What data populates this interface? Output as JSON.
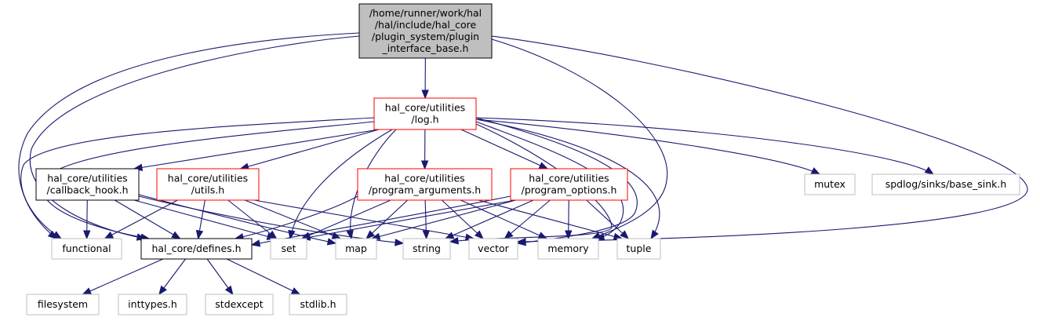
{
  "colors": {
    "root_fill": "#bfbfbf",
    "node_fill": "#ffffff",
    "border_root": "#000000",
    "border_red": "#ff0000",
    "border_black": "#000000",
    "border_gray": "#bfbfbf",
    "edge": "#191970"
  },
  "nodes": {
    "root": {
      "lines": [
        "/home/runner/work/hal",
        "/hal/include/hal_core",
        "/plugin_system/plugin",
        "_interface_base.h"
      ],
      "style": "root"
    },
    "log": {
      "lines": [
        "hal_core/utilities",
        "/log.h"
      ],
      "style": "red"
    },
    "callback": {
      "lines": [
        "hal_core/utilities",
        "/callback_hook.h"
      ],
      "style": "black"
    },
    "utils": {
      "lines": [
        "hal_core/utilities",
        "/utils.h"
      ],
      "style": "red"
    },
    "progargs": {
      "lines": [
        "hal_core/utilities",
        "/program_arguments.h"
      ],
      "style": "red"
    },
    "progopts": {
      "lines": [
        "hal_core/utilities",
        "/program_options.h"
      ],
      "style": "red"
    },
    "mutex": {
      "lines": [
        "mutex"
      ],
      "style": "gray"
    },
    "basesink": {
      "lines": [
        "spdlog/sinks/base_sink.h"
      ],
      "style": "gray"
    },
    "functional": {
      "lines": [
        "functional"
      ],
      "style": "gray"
    },
    "defines": {
      "lines": [
        "hal_core/defines.h"
      ],
      "style": "black"
    },
    "set": {
      "lines": [
        "set"
      ],
      "style": "gray"
    },
    "map": {
      "lines": [
        "map"
      ],
      "style": "gray"
    },
    "string": {
      "lines": [
        "string"
      ],
      "style": "gray"
    },
    "vector": {
      "lines": [
        "vector"
      ],
      "style": "gray"
    },
    "memory": {
      "lines": [
        "memory"
      ],
      "style": "gray"
    },
    "tuple": {
      "lines": [
        "tuple"
      ],
      "style": "gray"
    },
    "filesystem": {
      "lines": [
        "filesystem"
      ],
      "style": "gray"
    },
    "inttypes": {
      "lines": [
        "inttypes.h"
      ],
      "style": "gray"
    },
    "stdexcept": {
      "lines": [
        "stdexcept"
      ],
      "style": "gray"
    },
    "stdlib": {
      "lines": [
        "stdlib.h"
      ],
      "style": "gray"
    }
  },
  "edges": [
    [
      "root",
      "log"
    ],
    [
      "root",
      "functional"
    ],
    [
      "root",
      "defines"
    ],
    [
      "root",
      "memory"
    ],
    [
      "root",
      "vector"
    ],
    [
      "log",
      "callback"
    ],
    [
      "log",
      "utils"
    ],
    [
      "log",
      "progargs"
    ],
    [
      "log",
      "progopts"
    ],
    [
      "log",
      "mutex"
    ],
    [
      "log",
      "basesink"
    ],
    [
      "log",
      "functional"
    ],
    [
      "log",
      "defines"
    ],
    [
      "log",
      "set"
    ],
    [
      "log",
      "map"
    ],
    [
      "log",
      "string"
    ],
    [
      "log",
      "vector"
    ],
    [
      "log",
      "memory"
    ],
    [
      "log",
      "tuple"
    ],
    [
      "callback",
      "functional"
    ],
    [
      "callback",
      "defines"
    ],
    [
      "callback",
      "set"
    ],
    [
      "callback",
      "map"
    ],
    [
      "callback",
      "string"
    ],
    [
      "utils",
      "functional"
    ],
    [
      "utils",
      "defines"
    ],
    [
      "utils",
      "set"
    ],
    [
      "utils",
      "map"
    ],
    [
      "utils",
      "vector"
    ],
    [
      "progargs",
      "defines"
    ],
    [
      "progargs",
      "set"
    ],
    [
      "progargs",
      "map"
    ],
    [
      "progargs",
      "string"
    ],
    [
      "progargs",
      "vector"
    ],
    [
      "progargs",
      "memory"
    ],
    [
      "progargs",
      "tuple"
    ],
    [
      "progopts",
      "defines"
    ],
    [
      "progopts",
      "set"
    ],
    [
      "progopts",
      "map"
    ],
    [
      "progopts",
      "string"
    ],
    [
      "progopts",
      "vector"
    ],
    [
      "progopts",
      "memory"
    ],
    [
      "progopts",
      "tuple"
    ],
    [
      "defines",
      "filesystem"
    ],
    [
      "defines",
      "inttypes"
    ],
    [
      "defines",
      "stdexcept"
    ],
    [
      "defines",
      "stdlib"
    ]
  ]
}
